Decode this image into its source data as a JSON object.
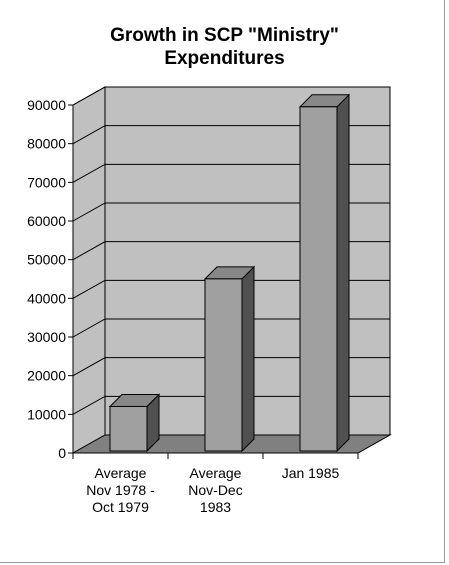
{
  "chart_data": {
    "type": "bar",
    "title_lines": [
      "Growth in SCP \"Ministry\"",
      "Expenditures"
    ],
    "categories": [
      [
        "Average",
        "Nov 1978 -",
        "Oct 1979"
      ],
      [
        "Average",
        "Nov-Dec",
        "1983"
      ],
      [
        "Jan 1985"
      ]
    ],
    "values": [
      11000,
      44000,
      88500
    ],
    "ylim": [
      0,
      90000
    ],
    "yticks": [
      "0",
      "10000",
      "20000",
      "30000",
      "40000",
      "50000",
      "60000",
      "70000",
      "80000",
      "90000"
    ],
    "grid": true,
    "legend": "none",
    "style": "3d-column",
    "colors": {
      "wall": "#c0c0c0",
      "floor": "#808080",
      "bar_front": "#a0a0a0",
      "bar_top": "#888888",
      "bar_side": "#505050",
      "grid": "#000000"
    }
  }
}
